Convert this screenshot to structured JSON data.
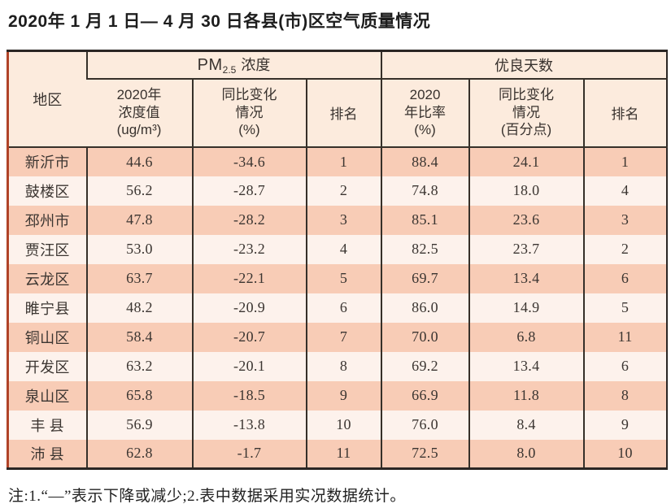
{
  "page": {
    "title": "2020年 1 月 1 日— 4 月 30 日各县(市)区空气质量情况",
    "note": "注:1.“—”表示下降或减少;2.表中数据采用实况数据统计。"
  },
  "colors": {
    "row_odd_bg": "#f8ccb6",
    "row_even_bg": "#fdf2ec",
    "header_bg": "#fcebdd",
    "border_dark": "#363029",
    "border_left_accent": "#b04328",
    "text_dark": "#3b3531"
  },
  "table": {
    "region_header": "地区",
    "pm_group": {
      "prefix": "PM",
      "sub": "2.5",
      "suffix": "浓度"
    },
    "days_group_label": "优良天数",
    "subheaders": {
      "pm_value": "2020年\n浓度值\n(ug/m³)",
      "pm_change": "同比变化\n情况\n(%)",
      "pm_rank": "排名",
      "days_ratio": "2020\n年比率\n(%)",
      "days_change": "同比变化\n情况\n(百分点)",
      "days_rank": "排名"
    },
    "column_keys": [
      "region",
      "pm_value",
      "pm_change",
      "pm_rank",
      "days_ratio",
      "days_change",
      "days_rank"
    ],
    "rows": [
      {
        "region": "新沂市",
        "pm_value": "44.6",
        "pm_change": "-34.6",
        "pm_rank": "1",
        "days_ratio": "88.4",
        "days_change": "24.1",
        "days_rank": "1"
      },
      {
        "region": "鼓楼区",
        "pm_value": "56.2",
        "pm_change": "-28.7",
        "pm_rank": "2",
        "days_ratio": "74.8",
        "days_change": "18.0",
        "days_rank": "4"
      },
      {
        "region": "邳州市",
        "pm_value": "47.8",
        "pm_change": "-28.2",
        "pm_rank": "3",
        "days_ratio": "85.1",
        "days_change": "23.6",
        "days_rank": "3"
      },
      {
        "region": "贾汪区",
        "pm_value": "53.0",
        "pm_change": "-23.2",
        "pm_rank": "4",
        "days_ratio": "82.5",
        "days_change": "23.7",
        "days_rank": "2"
      },
      {
        "region": "云龙区",
        "pm_value": "63.7",
        "pm_change": "-22.1",
        "pm_rank": "5",
        "days_ratio": "69.7",
        "days_change": "13.4",
        "days_rank": "6"
      },
      {
        "region": "睢宁县",
        "pm_value": "48.2",
        "pm_change": "-20.9",
        "pm_rank": "6",
        "days_ratio": "86.0",
        "days_change": "14.9",
        "days_rank": "5"
      },
      {
        "region": "铜山区",
        "pm_value": "58.4",
        "pm_change": "-20.7",
        "pm_rank": "7",
        "days_ratio": "70.0",
        "days_change": "6.8",
        "days_rank": "11"
      },
      {
        "region": "开发区",
        "pm_value": "63.2",
        "pm_change": "-20.1",
        "pm_rank": "8",
        "days_ratio": "69.2",
        "days_change": "13.4",
        "days_rank": "6"
      },
      {
        "region": "泉山区",
        "pm_value": "65.8",
        "pm_change": "-18.5",
        "pm_rank": "9",
        "days_ratio": "66.9",
        "days_change": "11.8",
        "days_rank": "8"
      },
      {
        "region": "丰 县",
        "pm_value": "56.9",
        "pm_change": "-13.8",
        "pm_rank": "10",
        "days_ratio": "76.0",
        "days_change": "8.4",
        "days_rank": "9"
      },
      {
        "region": "沛 县",
        "pm_value": "62.8",
        "pm_change": "-1.7",
        "pm_rank": "11",
        "days_ratio": "72.5",
        "days_change": "8.0",
        "days_rank": "10"
      }
    ]
  }
}
